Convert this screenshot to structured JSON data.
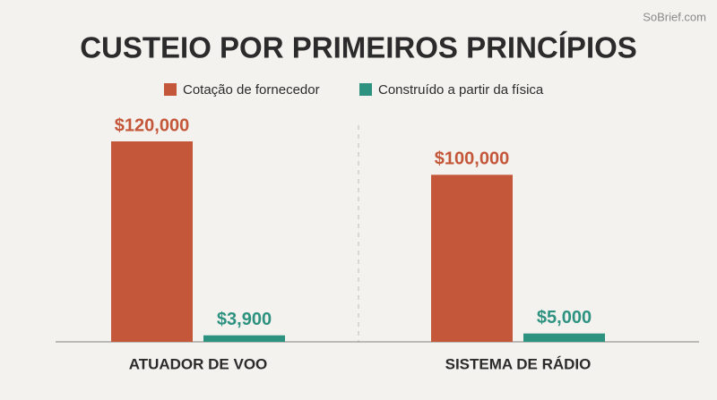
{
  "chart_data": {
    "type": "bar",
    "title": "CUSTEIO POR PRIMEIROS PRINCÍPIOS",
    "watermark": "SoBrief.com",
    "categories": [
      "ATUADOR DE VOO",
      "SISTEMA DE RÁDIO"
    ],
    "series": [
      {
        "name": "Cotação de fornecedor",
        "color": "#c4573a",
        "values": [
          120000,
          100000
        ],
        "value_labels": [
          "$120,000",
          "$100,000"
        ]
      },
      {
        "name": "Construído a partir da física",
        "color": "#2e9281",
        "values": [
          3900,
          5000
        ],
        "value_labels": [
          "$3,900",
          "$5,000"
        ]
      }
    ]
  }
}
